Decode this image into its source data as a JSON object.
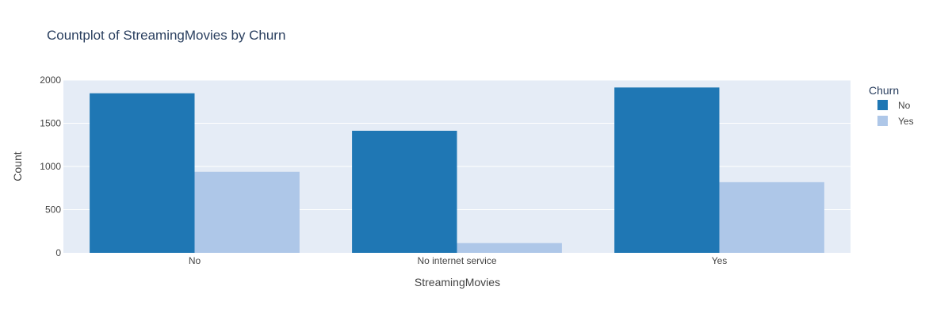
{
  "chart_data": {
    "type": "bar",
    "title": "Countplot of StreamingMovies by Churn",
    "xlabel": "StreamingMovies",
    "ylabel": "Count",
    "categories": [
      "No",
      "No internet service",
      "Yes"
    ],
    "ylim": [
      0,
      2000
    ],
    "yticks": [
      0,
      500,
      1000,
      1500,
      2000
    ],
    "grid": true,
    "legend": {
      "title": "Churn",
      "placement": "top-right"
    },
    "series": [
      {
        "name": "No",
        "values": [
          1847,
          1413,
          1914
        ],
        "color": "#1f77b4"
      },
      {
        "name": "Yes",
        "values": [
          938,
          113,
          818
        ],
        "color": "#aec7e8"
      }
    ],
    "colors": {
      "plot_background": "#e5ecf6",
      "grid": "#ffffff",
      "text": "#444444",
      "title_text": "#2a3f5f"
    }
  }
}
